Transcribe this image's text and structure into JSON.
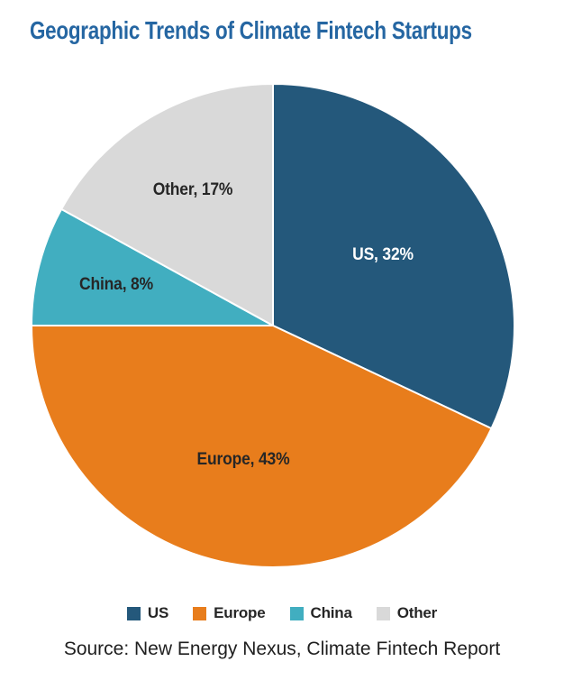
{
  "page": {
    "title": "Geographic Trends of Climate Fintech Startups",
    "source_line": "Source: New Energy Nexus, Climate Fintech Report"
  },
  "colors": {
    "title": "#2566A2",
    "background": "#ffffff",
    "dark_text": "#262626",
    "slice_separator": "#ffffff"
  },
  "chart_data": {
    "type": "pie",
    "title": "Geographic Trends of Climate Fintech Startups",
    "categories": [
      "US",
      "Europe",
      "China",
      "Other"
    ],
    "values": [
      32,
      43,
      8,
      17
    ],
    "unit": "%",
    "slice_labels": [
      "US, 32%",
      "Europe, 43%",
      "China, 8%",
      "Other, 17%"
    ],
    "colors": [
      "#24587B",
      "#E87D1C",
      "#41AEC0",
      "#D9D9D9"
    ],
    "label_colors": [
      "#FFFFFF",
      "#262626",
      "#262626",
      "#262626"
    ],
    "label_radius_fraction": [
      0.54,
      0.57,
      0.67,
      0.65
    ],
    "start_angle_deg": 0,
    "direction": "clockwise",
    "legend": [
      "US",
      "Europe",
      "China",
      "Other"
    ],
    "legend_position": "bottom",
    "source": "Source: New Energy Nexus, Climate Fintech Report"
  }
}
